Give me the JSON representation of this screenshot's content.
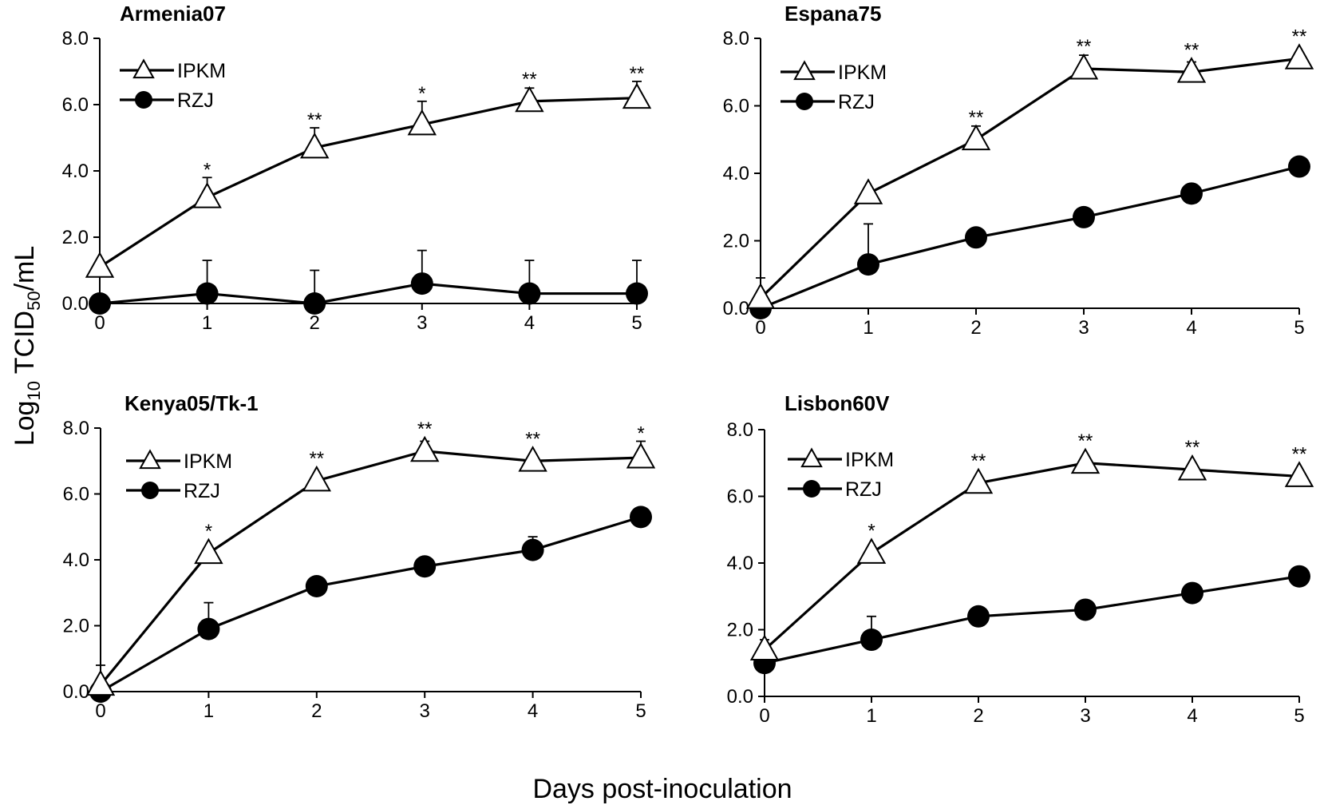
{
  "figure": {
    "ylabel_prefix": "Log",
    "ylabel_sub10": "10",
    "ylabel_mid": " TCID",
    "ylabel_sub50": "50",
    "ylabel_suffix": "/mL",
    "xlabel": "Days post-inoculation"
  },
  "chart_data": [
    {
      "type": "line",
      "title": "Armenia07",
      "x": [
        0,
        1,
        2,
        3,
        4,
        5
      ],
      "x_tick_labels": [
        "0",
        "1",
        "2",
        "3",
        "4",
        "5"
      ],
      "y_tick_labels": [
        "0.0",
        "2.0",
        "4.0",
        "6.0",
        "8.0"
      ],
      "ylim": [
        0,
        8
      ],
      "xlim": [
        0,
        5
      ],
      "series": [
        {
          "name": "IPKM",
          "marker": "triangle-open",
          "values": [
            1.1,
            3.2,
            4.7,
            5.4,
            6.1,
            6.2
          ],
          "err": [
            0.0,
            0.6,
            0.6,
            0.7,
            0.4,
            0.5
          ]
        },
        {
          "name": "RZJ",
          "marker": "circle-filled",
          "values": [
            0.0,
            0.3,
            0.0,
            0.6,
            0.3,
            0.3
          ],
          "err": [
            0.0,
            1.0,
            1.0,
            1.0,
            1.0,
            1.0
          ]
        }
      ],
      "significance": [
        "",
        "*",
        "**",
        "*",
        "**",
        "**"
      ]
    },
    {
      "type": "line",
      "title": "Espana75",
      "x": [
        0,
        1,
        2,
        3,
        4,
        5
      ],
      "x_tick_labels": [
        "0",
        "1",
        "2",
        "3",
        "4",
        "5"
      ],
      "y_tick_labels": [
        "0.0",
        "2.0",
        "4.0",
        "6.0",
        "8.0"
      ],
      "ylim": [
        0,
        8
      ],
      "xlim": [
        0,
        5
      ],
      "series": [
        {
          "name": "IPKM",
          "marker": "triangle-open",
          "values": [
            0.3,
            3.4,
            5.0,
            7.1,
            7.0,
            7.4
          ],
          "err": [
            0.6,
            0.0,
            0.4,
            0.4,
            0.3,
            0.0
          ]
        },
        {
          "name": "RZJ",
          "marker": "circle-filled",
          "values": [
            0.0,
            1.3,
            2.1,
            2.7,
            3.4,
            4.2
          ],
          "err": [
            0.0,
            1.2,
            0.0,
            0.0,
            0.0,
            0.0
          ]
        }
      ],
      "significance": [
        "",
        "",
        "**",
        "**",
        "**",
        "**"
      ]
    },
    {
      "type": "line",
      "title": "Kenya05/Tk-1",
      "x": [
        0,
        1,
        2,
        3,
        4,
        5
      ],
      "x_tick_labels": [
        "0",
        "1",
        "2",
        "3",
        "4",
        "5"
      ],
      "y_tick_labels": [
        "0.0",
        "2.0",
        "4.0",
        "6.0",
        "8.0"
      ],
      "ylim": [
        0,
        8
      ],
      "xlim": [
        0,
        5
      ],
      "series": [
        {
          "name": "IPKM",
          "marker": "triangle-open",
          "values": [
            0.2,
            4.2,
            6.4,
            7.3,
            7.0,
            7.1
          ],
          "err": [
            0.6,
            0.0,
            0.0,
            0.3,
            0.0,
            0.5
          ]
        },
        {
          "name": "RZJ",
          "marker": "circle-filled",
          "values": [
            0.0,
            1.9,
            3.2,
            3.8,
            4.3,
            5.3
          ],
          "err": [
            0.0,
            0.8,
            0.0,
            0.0,
            0.4,
            0.0
          ]
        }
      ],
      "significance": [
        "",
        "*",
        "**",
        "**",
        "**",
        "*"
      ]
    },
    {
      "type": "line",
      "title": "Lisbon60V",
      "x": [
        0,
        1,
        2,
        3,
        4,
        5
      ],
      "x_tick_labels": [
        "0",
        "1",
        "2",
        "3",
        "4",
        "5"
      ],
      "y_tick_labels": [
        "0.0",
        "2.0",
        "4.0",
        "6.0",
        "8.0"
      ],
      "ylim": [
        0,
        8
      ],
      "xlim": [
        0,
        5
      ],
      "series": [
        {
          "name": "IPKM",
          "marker": "triangle-open",
          "values": [
            1.4,
            4.3,
            6.4,
            7.0,
            6.8,
            6.6
          ],
          "err": [
            0.3,
            0.0,
            0.0,
            0.0,
            0.0,
            0.0
          ]
        },
        {
          "name": "RZJ",
          "marker": "circle-filled",
          "values": [
            1.0,
            1.7,
            2.4,
            2.6,
            3.1,
            3.6
          ],
          "err": [
            0.0,
            0.7,
            0.0,
            0.0,
            0.0,
            0.0
          ]
        }
      ],
      "significance": [
        "",
        "*",
        "**",
        "**",
        "**",
        "**"
      ]
    }
  ]
}
